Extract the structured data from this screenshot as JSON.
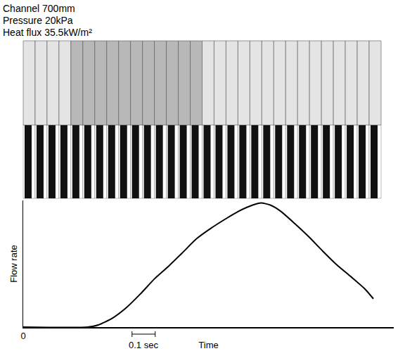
{
  "chart_data": {
    "type": "line",
    "notes": [
      "Channel 700mm",
      "Pressure 20kPa",
      "Heat flux 35.5kW/m²"
    ],
    "x_label": "Time",
    "y_label": "Flow rate",
    "x": [
      0,
      0.279,
      0.324,
      0.385,
      0.445,
      0.506,
      0.567,
      0.627,
      0.688,
      0.748,
      0.809,
      0.87,
      0.93,
      0.991,
      1.027,
      1.067,
      1.112,
      1.173,
      1.233,
      1.294,
      1.355,
      1.415,
      1.476,
      1.512
    ],
    "values": [
      0,
      0,
      0.017,
      0.072,
      0.156,
      0.267,
      0.389,
      0.489,
      0.6,
      0.711,
      0.794,
      0.867,
      0.933,
      0.983,
      1.0,
      0.983,
      0.933,
      0.833,
      0.728,
      0.611,
      0.5,
      0.406,
      0.306,
      0.228
    ],
    "color": "#000000",
    "xlim": [
      0,
      1.6
    ],
    "ylim": [
      0,
      1.02
    ],
    "xticks": [
      0
    ],
    "tick_labels": "x",
    "grid": false,
    "scale_bar": {
      "label": "0.1 sec",
      "start": 0.47,
      "end": 0.57
    }
  }
}
